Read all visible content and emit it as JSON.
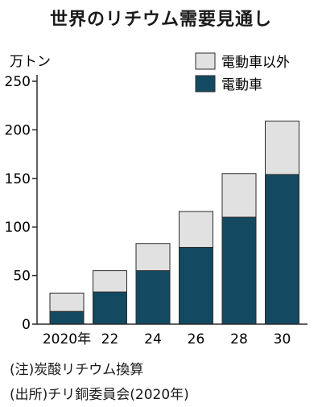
{
  "title": "世界のリチウム需要見通し",
  "unit_label": "万トン",
  "notes": {
    "note": "(注)炭酸リチウム換算",
    "source": "(出所)チリ銅委員会(2020年)"
  },
  "colors": {
    "ev": "#134a62",
    "other": "#e1e1e1",
    "outline": "#2b2b2b"
  },
  "chart_data": {
    "type": "bar",
    "stacked": true,
    "title": "世界のリチウム需要見通し",
    "ylabel": "万トン",
    "categories": [
      "2020年",
      "22",
      "24",
      "26",
      "28",
      "30"
    ],
    "series": [
      {
        "name": "電動車",
        "values": [
          13,
          33,
          55,
          79,
          110,
          154
        ]
      },
      {
        "name": "電動車以外",
        "values": [
          19,
          22,
          28,
          37,
          45,
          55
        ]
      }
    ],
    "yticks": [
      0,
      50,
      100,
      150,
      200,
      250
    ],
    "ylim": [
      0,
      250
    ],
    "grid": false,
    "legend": "top-right"
  }
}
